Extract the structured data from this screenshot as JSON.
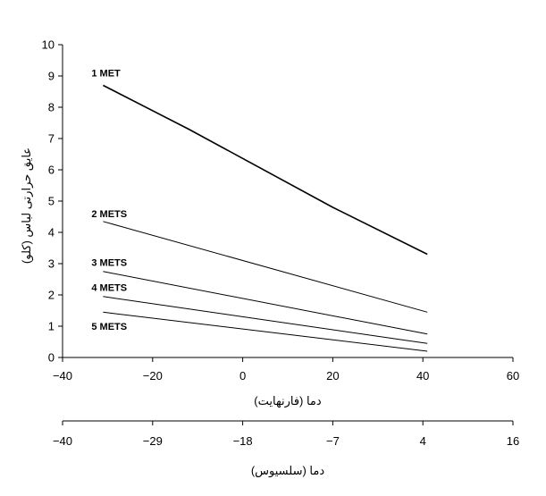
{
  "chart_data": {
    "type": "line",
    "ylabel": "عایق حرارتی لباس (کلو)",
    "xlabel": "دما (فارنهایت)",
    "xlabel2": "دما (سلسیوس)",
    "ylim": [
      0,
      10
    ],
    "xlim": [
      -40,
      60
    ],
    "y_ticks": [
      "0",
      "1",
      "2",
      "3",
      "4",
      "5",
      "6",
      "7",
      "8",
      "9",
      "10"
    ],
    "x_ticks": [
      "−40",
      "−20",
      "0",
      "20",
      "40",
      "60"
    ],
    "x2_ticks": [
      "−40",
      "−29",
      "−18",
      "−7",
      "4",
      "16"
    ],
    "grid": false,
    "legend": "inline labels at left end of each line",
    "series": [
      {
        "name": "1 MET",
        "x": [
          -31,
          -12,
          20,
          41
        ],
        "values": [
          8.7,
          7.3,
          4.8,
          3.3
        ],
        "label_y": 9.1
      },
      {
        "name": "2 METS",
        "x": [
          -31,
          41
        ],
        "values": [
          4.35,
          1.45
        ],
        "label_y": 4.6
      },
      {
        "name": "3 METS",
        "x": [
          -31,
          41
        ],
        "values": [
          2.75,
          0.75
        ],
        "label_y": 3.05
      },
      {
        "name": "4 METS",
        "x": [
          -31,
          41
        ],
        "values": [
          1.95,
          0.45
        ],
        "label_y": 2.25
      },
      {
        "name": "5 METS",
        "x": [
          -31,
          41
        ],
        "values": [
          1.45,
          0.2
        ],
        "label_y": 1.0
      }
    ],
    "line_color": "#000000"
  }
}
